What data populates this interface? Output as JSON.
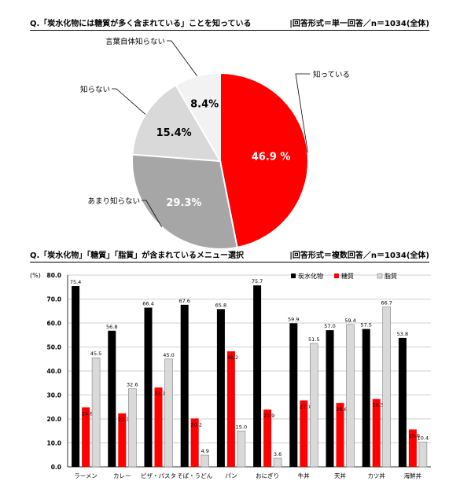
{
  "header1": {
    "question": "Q.「炭水化物には糖質が多く含まれている」ことを知っている",
    "format": "|回答形式＝単一回答／n＝1034(全体)"
  },
  "header2": {
    "question": "Q.「炭水化物」「糖質」「脂質」が含まれているメニュー選択",
    "format": "|回答形式＝複数回答／n＝1034(全体)"
  },
  "chart_data": [
    {
      "type": "pie",
      "slices": [
        {
          "label": "知っている",
          "value": 46.9,
          "value_label": "46.9 %",
          "color": "#ff0000",
          "text_color": "#ffffff"
        },
        {
          "label": "あまり知らない",
          "value": 29.3,
          "value_label": "29.3%",
          "color": "#a6a6a6",
          "text_color": "#ffffff"
        },
        {
          "label": "知らない",
          "value": 15.4,
          "value_label": "15.4%",
          "color": "#d9d9d9",
          "text_color": "#000000"
        },
        {
          "label": "言葉自体知らない",
          "value": 8.4,
          "value_label": "8.4%",
          "color": "#f2f2f2",
          "text_color": "#000000"
        }
      ]
    },
    {
      "type": "bar",
      "ylabel": "(%)",
      "ylim": [
        0,
        80
      ],
      "yticks": [
        "0.0",
        "10.0",
        "20.0",
        "30.0",
        "40.0",
        "50.0",
        "60.0",
        "70.0",
        "80.0"
      ],
      "grid": true,
      "legend_position": "top-right",
      "categories": [
        "ラーメン",
        "カレー",
        "ピザ・パスタ",
        "そば・うどん",
        "パン",
        "おにぎり",
        "牛丼",
        "天丼",
        "カツ丼",
        "海鮮丼"
      ],
      "series": [
        {
          "name": "炭水化物",
          "color": "#000000",
          "values": [
            75.4,
            56.8,
            66.4,
            67.6,
            65.8,
            75.7,
            59.9,
            57.0,
            57.5,
            53.8
          ],
          "labels": [
            "75.4",
            "56.8",
            "66.4",
            "67.6",
            "65.8",
            "75.7",
            "59.9",
            "57.0",
            "57.5",
            "53.8"
          ]
        },
        {
          "name": "糖質",
          "color": "#ff0000",
          "values": [
            24.8,
            22.3,
            33.1,
            20.2,
            48.2,
            23.9,
            27.7,
            26.6,
            28.3,
            15.6
          ],
          "labels": [
            "24.8",
            "22.3",
            "33.1",
            "20.2",
            "48.2",
            "23.9",
            "27.7",
            "26.6",
            "28.3",
            "15.6"
          ]
        },
        {
          "name": "脂質",
          "color": "#d9d9d9",
          "values": [
            45.5,
            32.6,
            45.0,
            4.9,
            15.0,
            3.6,
            51.5,
            59.4,
            66.7,
            10.4
          ],
          "labels": [
            "45.5",
            "32.6",
            "45.0",
            "4.9",
            "15.0",
            "3.6",
            "51.5",
            "59.4",
            "66.7",
            "10.4"
          ]
        }
      ]
    }
  ]
}
